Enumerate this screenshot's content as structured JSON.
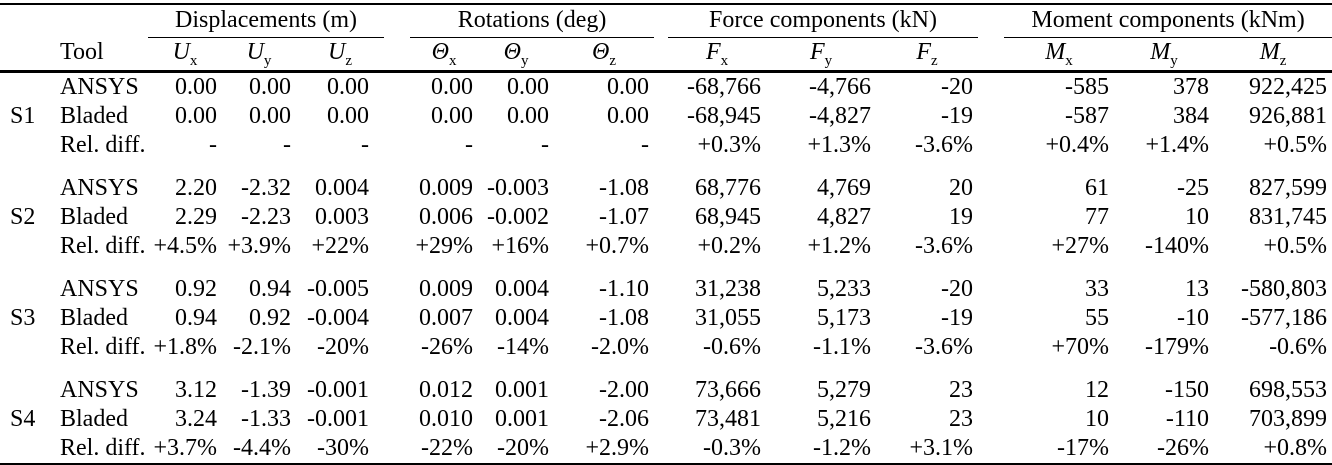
{
  "table": {
    "row_header": "Tool",
    "column_groups": [
      {
        "label": "Displacements (m)",
        "columns": [
          {
            "base": "U",
            "sub": "x"
          },
          {
            "base": "U",
            "sub": "y"
          },
          {
            "base": "U",
            "sub": "z"
          }
        ]
      },
      {
        "label": "Rotations (deg)",
        "columns": [
          {
            "base": "Θ",
            "sub": "x"
          },
          {
            "base": "Θ",
            "sub": "y"
          },
          {
            "base": "Θ",
            "sub": "z"
          }
        ]
      },
      {
        "label": "Force components (kN)",
        "columns": [
          {
            "base": "F",
            "sub": "x"
          },
          {
            "base": "F",
            "sub": "y"
          },
          {
            "base": "F",
            "sub": "z"
          }
        ]
      },
      {
        "label": "Moment components (kNm)",
        "columns": [
          {
            "base": "M",
            "sub": "x"
          },
          {
            "base": "M",
            "sub": "y"
          },
          {
            "base": "M",
            "sub": "z"
          }
        ]
      }
    ],
    "sections": [
      {
        "id": "S1",
        "rows": [
          {
            "tool": "ANSYS",
            "values": [
              "0.00",
              "0.00",
              "0.00",
              "0.00",
              "0.00",
              "0.00",
              "-68,766",
              "-4,766",
              "-20",
              "-585",
              "378",
              "922,425"
            ]
          },
          {
            "tool": "Bladed",
            "values": [
              "0.00",
              "0.00",
              "0.00",
              "0.00",
              "0.00",
              "0.00",
              "-68,945",
              "-4,827",
              "-19",
              "-587",
              "384",
              "926,881"
            ]
          },
          {
            "tool": "Rel. diff.",
            "values": [
              "-",
              "-",
              "-",
              "-",
              "-",
              "-",
              "+0.3%",
              "+1.3%",
              "-3.6%",
              "+0.4%",
              "+1.4%",
              "+0.5%"
            ]
          }
        ]
      },
      {
        "id": "S2",
        "rows": [
          {
            "tool": "ANSYS",
            "values": [
              "2.20",
              "-2.32",
              "0.004",
              "0.009",
              "-0.003",
              "-1.08",
              "68,776",
              "4,769",
              "20",
              "61",
              "-25",
              "827,599"
            ]
          },
          {
            "tool": "Bladed",
            "values": [
              "2.29",
              "-2.23",
              "0.003",
              "0.006",
              "-0.002",
              "-1.07",
              "68,945",
              "4,827",
              "19",
              "77",
              "10",
              "831,745"
            ]
          },
          {
            "tool": "Rel. diff.",
            "values": [
              "+4.5%",
              "+3.9%",
              "+22%",
              "+29%",
              "+16%",
              "+0.7%",
              "+0.2%",
              "+1.2%",
              "-3.6%",
              "+27%",
              "-140%",
              "+0.5%"
            ]
          }
        ]
      },
      {
        "id": "S3",
        "rows": [
          {
            "tool": "ANSYS",
            "values": [
              "0.92",
              "0.94",
              "-0.005",
              "0.009",
              "0.004",
              "-1.10",
              "31,238",
              "5,233",
              "-20",
              "33",
              "13",
              "-580,803"
            ]
          },
          {
            "tool": "Bladed",
            "values": [
              "0.94",
              "0.92",
              "-0.004",
              "0.007",
              "0.004",
              "-1.08",
              "31,055",
              "5,173",
              "-19",
              "55",
              "-10",
              "-577,186"
            ]
          },
          {
            "tool": "Rel. diff.",
            "values": [
              "+1.8%",
              "-2.1%",
              "-20%",
              "-26%",
              "-14%",
              "-2.0%",
              "-0.6%",
              "-1.1%",
              "-3.6%",
              "+70%",
              "-179%",
              "-0.6%"
            ]
          }
        ]
      },
      {
        "id": "S4",
        "rows": [
          {
            "tool": "ANSYS",
            "values": [
              "3.12",
              "-1.39",
              "-0.001",
              "0.012",
              "0.001",
              "-2.00",
              "73,666",
              "5,279",
              "23",
              "12",
              "-150",
              "698,553"
            ]
          },
          {
            "tool": "Bladed",
            "values": [
              "3.24",
              "-1.33",
              "-0.001",
              "0.010",
              "0.001",
              "-2.06",
              "73,481",
              "5,216",
              "23",
              "10",
              "-110",
              "703,899"
            ]
          },
          {
            "tool": "Rel. diff.",
            "values": [
              "+3.7%",
              "-4.4%",
              "-30%",
              "-22%",
              "-20%",
              "+2.9%",
              "-0.3%",
              "-1.2%",
              "+3.1%",
              "-17%",
              "-26%",
              "+0.8%"
            ]
          }
        ]
      }
    ]
  }
}
